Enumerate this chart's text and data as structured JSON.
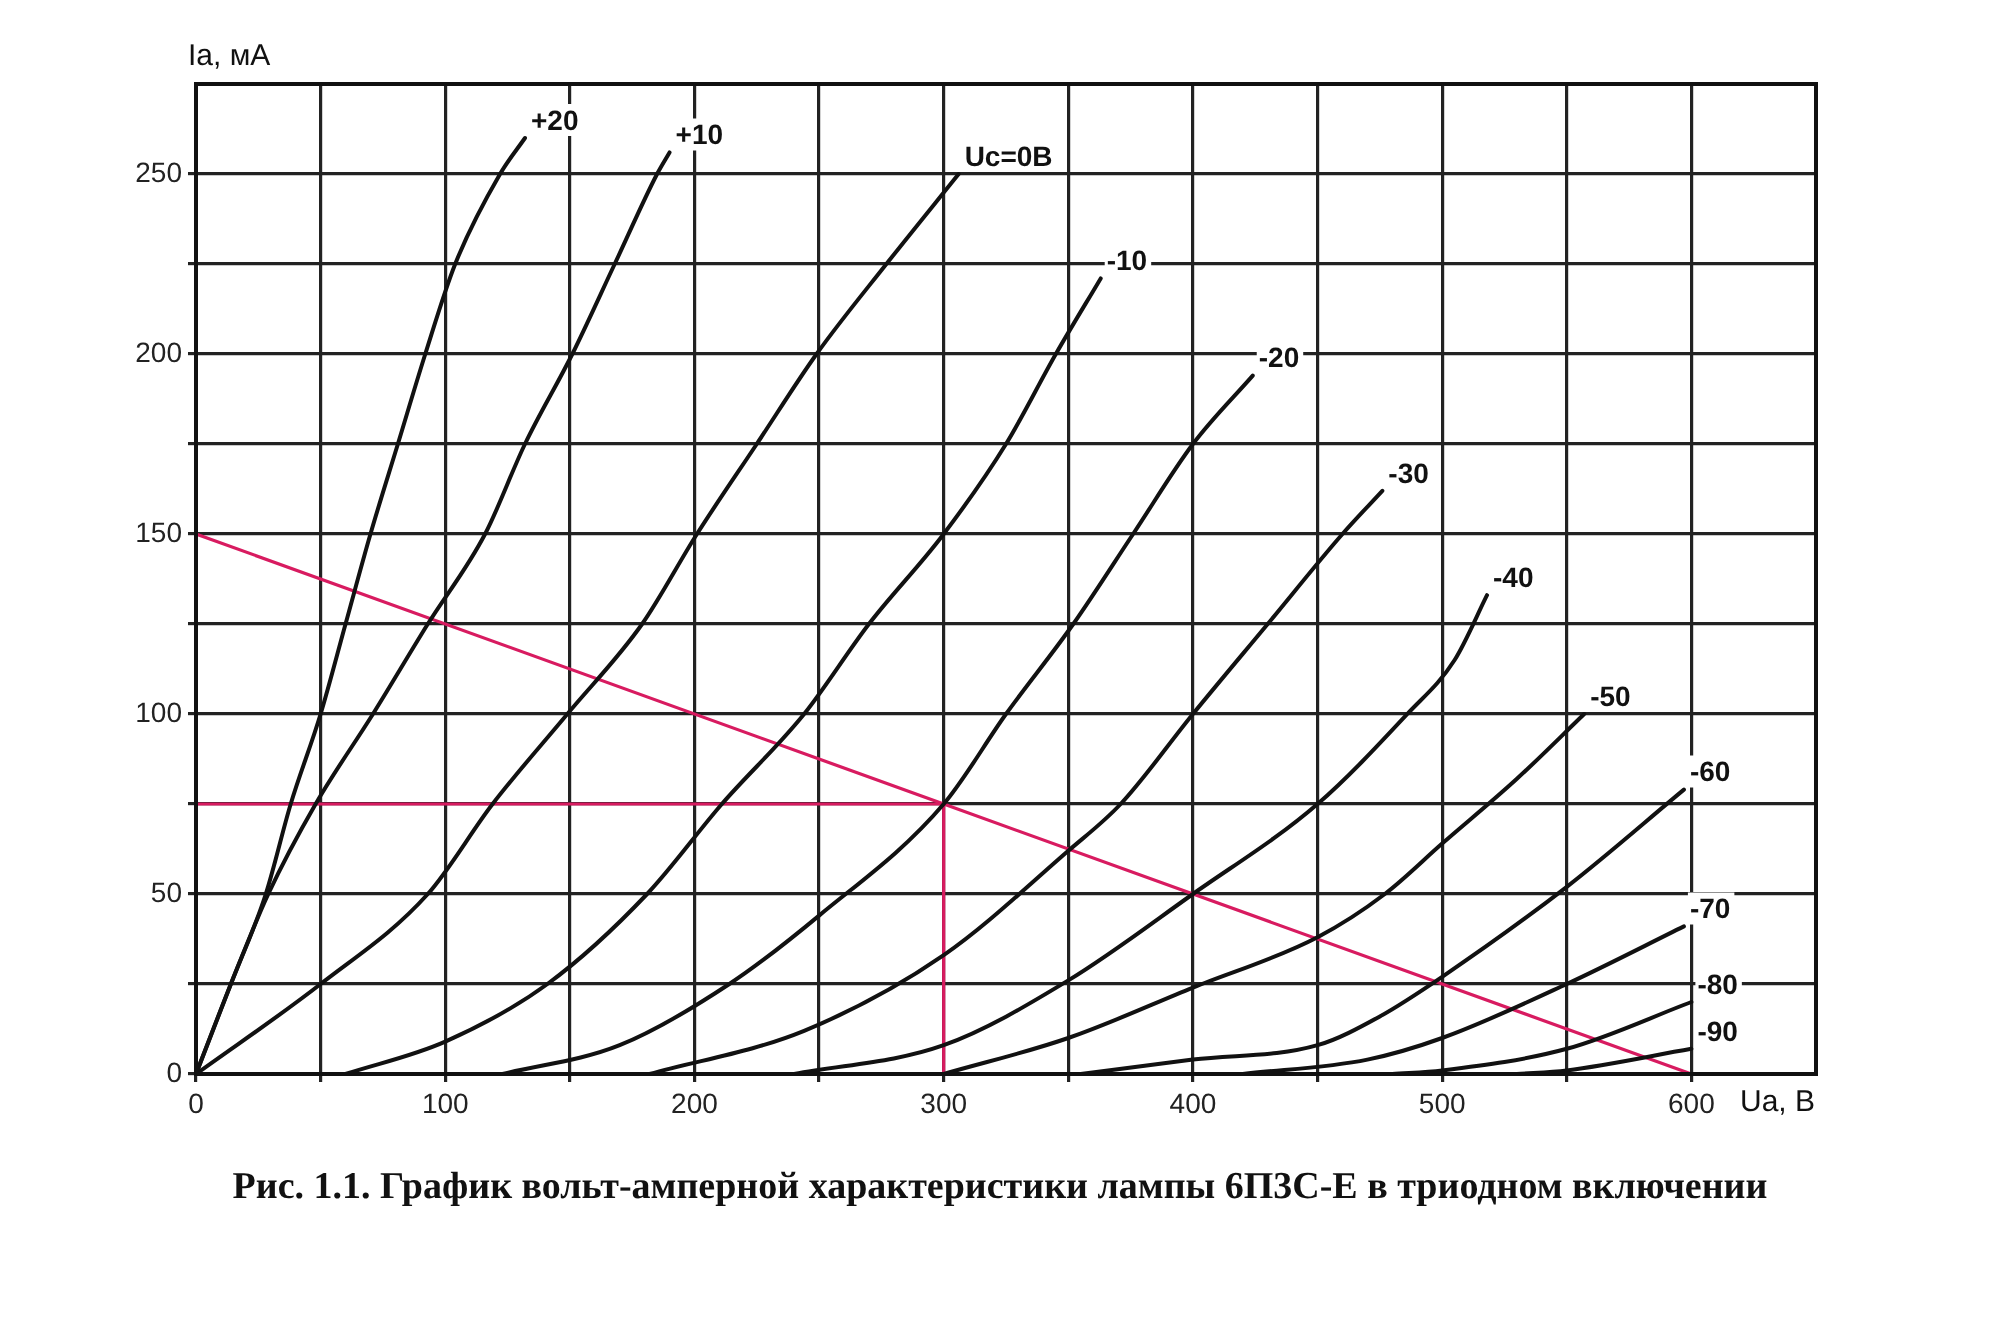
{
  "chart_data": {
    "type": "line",
    "title": "Рис. 1.1. График вольт-амперной характеристики лампы 6П3С-Е в триодном включении",
    "xlabel": "Ua, B",
    "ylabel": "Ia, мА",
    "xlim": [
      0,
      650
    ],
    "ylim": [
      0,
      275
    ],
    "xticks": [
      0,
      {
        "value": 50,
        "label": null
      },
      100,
      {
        "value": 150,
        "label": null
      },
      200,
      {
        "value": 250,
        "label": null
      },
      300,
      {
        "value": 350,
        "label": null
      },
      400,
      {
        "value": 450,
        "label": null
      },
      500,
      {
        "value": 550,
        "label": null
      },
      600
    ],
    "yticks": [
      0,
      {
        "value": 25,
        "label": null
      },
      50,
      {
        "value": 75,
        "label": null
      },
      100,
      {
        "value": 125,
        "label": null
      },
      150,
      {
        "value": 175,
        "label": null
      },
      200,
      {
        "value": 225,
        "label": null
      },
      250
    ],
    "grid": true,
    "legend": false,
    "marker": "none",
    "series": [
      {
        "name": "+20",
        "color": "#111111",
        "x": [
          0,
          14,
          28,
          38,
          50,
          60,
          70,
          81,
          92,
          104,
          122,
          132
        ],
        "values": [
          0,
          25,
          50,
          75,
          100,
          125,
          150,
          175,
          200,
          225,
          250,
          260
        ]
      },
      {
        "name": "+10",
        "color": "#111111",
        "x": [
          0,
          14,
          29,
          48,
          71,
          93,
          116,
          132,
          151,
          168,
          185,
          190
        ],
        "values": [
          0,
          25,
          50,
          75,
          100,
          125,
          150,
          175,
          200,
          225,
          250,
          256
        ]
      },
      {
        "name": "Uc=0B",
        "color": "#111111",
        "x": [
          0,
          50,
          93,
          119,
          149,
          179,
          201,
          225,
          249,
          277,
          306
        ],
        "values": [
          0,
          25,
          50,
          75,
          100,
          125,
          150,
          175,
          200,
          225,
          250
        ]
      },
      {
        "name": "-10",
        "color": "#111111",
        "x": [
          60,
          100,
          141,
          181,
          211,
          244,
          270,
          300,
          325,
          345,
          363
        ],
        "values": [
          0,
          9,
          25,
          50,
          75,
          100,
          125,
          150,
          175,
          200,
          221
        ]
      },
      {
        "name": "-20",
        "color": "#111111",
        "x": [
          123,
          170,
          214,
          250,
          300,
          325,
          352,
          376,
          400,
          424
        ],
        "values": [
          0,
          8,
          25,
          44,
          75,
          100,
          125,
          150,
          175,
          194
        ]
      },
      {
        "name": "-30",
        "color": "#111111",
        "x": [
          182,
          244,
          300,
          350,
          371,
          400,
          430,
          460,
          476
        ],
        "values": [
          0,
          12,
          33,
          62,
          75,
          100,
          125,
          150,
          162
        ]
      },
      {
        "name": "-40",
        "color": "#111111",
        "x": [
          240,
          300,
          350,
          400,
          450,
          486,
          505,
          518
        ],
        "values": [
          0,
          8,
          26,
          50,
          75,
          100,
          115,
          133
        ]
      },
      {
        "name": "-50",
        "color": "#111111",
        "x": [
          300,
          350,
          400,
          450,
          477,
          500,
          530,
          557
        ],
        "values": [
          0,
          10,
          24,
          38,
          50,
          64,
          82,
          100
        ]
      },
      {
        "name": "-60",
        "color": "#111111",
        "x": [
          355,
          400,
          450,
          475,
          500,
          550,
          597
        ],
        "values": [
          0,
          4,
          8,
          16,
          27,
          52,
          79
        ]
      },
      {
        "name": "-70",
        "color": "#111111",
        "x": [
          420,
          470,
          500,
          550,
          597
        ],
        "values": [
          0,
          4,
          10,
          25,
          41
        ]
      },
      {
        "name": "-80",
        "color": "#111111",
        "x": [
          480,
          500,
          550,
          600
        ],
        "values": [
          0,
          1,
          7,
          20
        ]
      },
      {
        "name": "-90",
        "color": "#111111",
        "x": [
          530,
          550,
          600
        ],
        "values": [
          0,
          1,
          7
        ]
      },
      {
        "color": "#d81b60",
        "x": [
          0,
          600
        ],
        "values": [
          150,
          0
        ]
      },
      {
        "color": "#d81b60",
        "x": [
          0,
          300
        ],
        "values": [
          75,
          75
        ]
      },
      {
        "color": "#d81b60",
        "x": [
          300,
          300
        ],
        "values": [
          0,
          75
        ]
      }
    ]
  }
}
